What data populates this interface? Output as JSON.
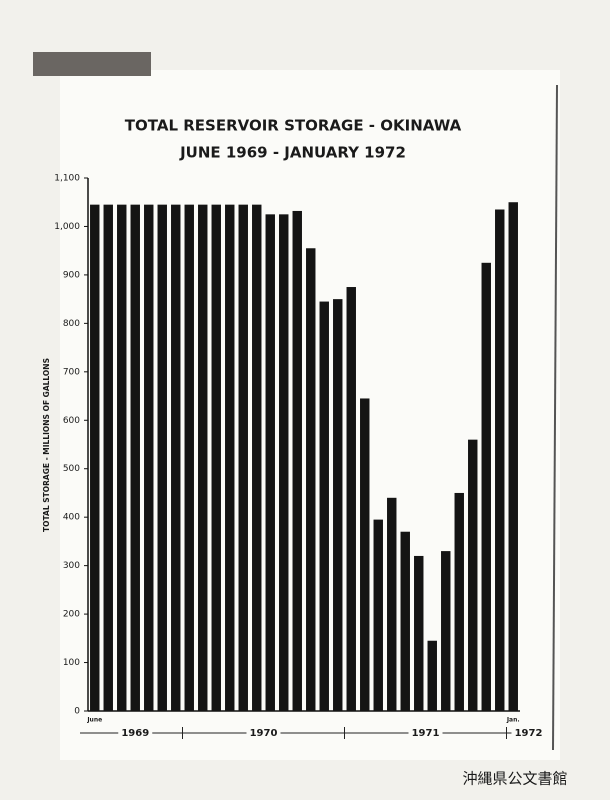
{
  "chart_data": {
    "type": "bar",
    "title": "TOTAL RESERVOIR STORAGE - OKINAWA",
    "subtitle": "JUNE 1969 - JANUARY 1972",
    "y_label": "TOTAL STORAGE - MILLIONS OF GALLONS",
    "categories": [
      "June",
      null,
      null,
      null,
      null,
      null,
      null,
      null,
      null,
      null,
      null,
      null,
      null,
      null,
      null,
      null,
      null,
      null,
      null,
      null,
      null,
      null,
      null,
      null,
      null,
      null,
      null,
      null,
      null,
      null,
      null,
      "Jan."
    ],
    "x_groups": [
      "1969",
      "1970",
      "1971",
      "1972"
    ],
    "values": [
      1045,
      1045,
      1045,
      1045,
      1045,
      1045,
      1045,
      1045,
      1045,
      1045,
      1045,
      1045,
      1045,
      1025,
      1025,
      1032,
      955,
      845,
      850,
      875,
      645,
      395,
      440,
      370,
      320,
      145,
      330,
      450,
      560,
      925,
      1035,
      1050
    ],
    "color": "#141414",
    "ylim": [
      0,
      1100
    ],
    "yticks": [
      0,
      100,
      200,
      300,
      400,
      500,
      600,
      700,
      800,
      900,
      {
        "value": 1000,
        "label": "1,000"
      },
      {
        "value": 1100,
        "label": "1,100"
      }
    ],
    "grid": false
  },
  "watermark": "沖縄県公文書館"
}
